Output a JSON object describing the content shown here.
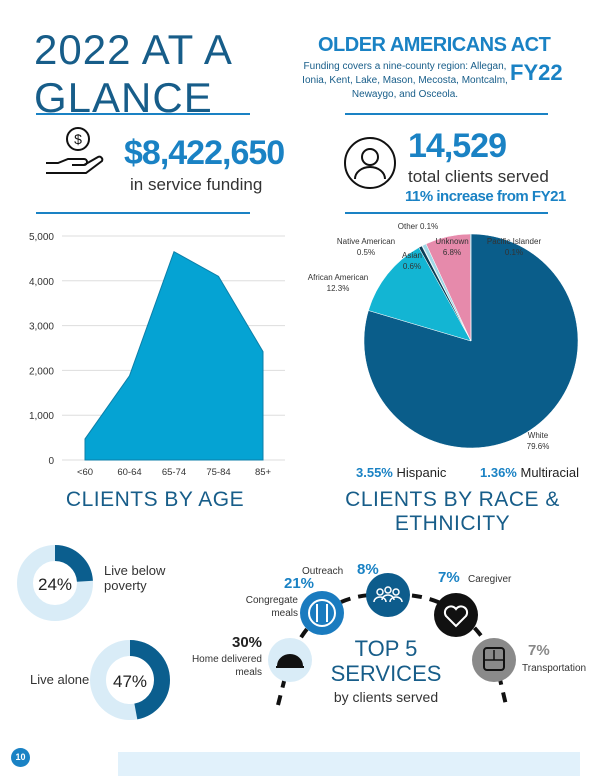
{
  "header": {
    "title": "2022 AT A GLANCE",
    "program": "OLDER AMERICANS ACT",
    "fiscal_year": "FY22",
    "funding_note": "Funding covers a nine-county region: Allegan, Ionia, Kent, Lake, Mason, Mecosta, Montcalm, Newaygo, and Osceola."
  },
  "funding": {
    "icon": "hand-dollar-icon",
    "amount": "$8,422,650",
    "label": "in service funding"
  },
  "clients": {
    "icon": "person-icon",
    "count": "14,529",
    "label": "total clients served",
    "increase": "11% increase from FY21"
  },
  "chart_data": [
    {
      "type": "area",
      "title": "CLIENTS BY AGE",
      "categories": [
        "<60",
        "60-64",
        "65-74",
        "75-84",
        "85+"
      ],
      "values": [
        470,
        1880,
        4650,
        4100,
        2420
      ],
      "ylim": [
        0,
        5000
      ],
      "yticks": [
        "0",
        "1,000",
        "2,000",
        "3,000",
        "4,000",
        "5,000"
      ],
      "grid": true,
      "color": "#05a3d3"
    },
    {
      "type": "pie",
      "title": "CLIENTS BY RACE & ETHNICITY",
      "slices": [
        {
          "label": "White",
          "value": 79.6,
          "text": "79.6%",
          "color": "#0a5d8a"
        },
        {
          "label": "African American",
          "value": 12.3,
          "text": "12.3%",
          "color": "#13b5d3"
        },
        {
          "label": "Native American",
          "value": 0.5,
          "text": "0.5%",
          "color": "#0b3d55"
        },
        {
          "label": "Other",
          "value": 0.1,
          "text": "0.1%",
          "color": "#7ec8e3"
        },
        {
          "label": "Asian",
          "value": 0.6,
          "text": "0.6%",
          "color": "#9fd8e6"
        },
        {
          "label": "Unknown",
          "value": 6.8,
          "text": "6.8%",
          "color": "#e68aab"
        },
        {
          "label": "Pacific Islander",
          "value": 0.1,
          "text": "0.1%",
          "color": "#0a5d8a"
        }
      ],
      "extras": [
        {
          "value": "3.55%",
          "label": "Hispanic"
        },
        {
          "value": "1.36%",
          "label": "Multiracial"
        }
      ]
    }
  ],
  "donuts": [
    {
      "value": 24,
      "text": "24%",
      "label": "Live below poverty"
    },
    {
      "value": 47,
      "text": "47%",
      "label": "Live alone"
    }
  ],
  "services": {
    "title1": "TOP 5",
    "title2": "SERVICES",
    "subtitle": "by clients served",
    "items": [
      {
        "pct": "30%",
        "label": "Home delivered meals",
        "icon": "cloche-icon"
      },
      {
        "pct": "21%",
        "label": "Congregate meals",
        "icon": "plate-utensils-icon"
      },
      {
        "pct": "8%",
        "label": "Outreach",
        "icon": "group-icon"
      },
      {
        "pct": "7%",
        "label": "Caregiver",
        "icon": "heart-icon"
      },
      {
        "pct": "7%",
        "label": "Transportation",
        "icon": "bus-icon"
      }
    ]
  },
  "page_number": "10"
}
